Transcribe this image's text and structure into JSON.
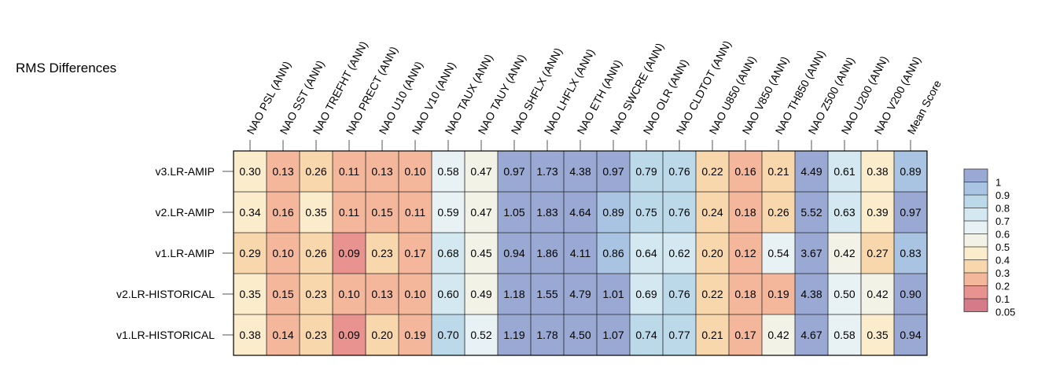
{
  "chart_data": {
    "type": "heatmap",
    "title": "RMS Differences",
    "columns": [
      "NAO PSL (ANN)",
      "NAO SST (ANN)",
      "NAO TREFHT (ANN)",
      "NAO PRECT (ANN)",
      "NAO U10 (ANN)",
      "NAO V10 (ANN)",
      "NAO TAUX (ANN)",
      "NAO TAUY (ANN)",
      "NAO SHFLX (ANN)",
      "NAO LHFLX (ANN)",
      "NAO ETH (ANN)",
      "NAO SWCRE (ANN)",
      "NAO OLR (ANN)",
      "NAO CLDTOT (ANN)",
      "NAO U850 (ANN)",
      "NAO V850 (ANN)",
      "NAO TH850 (ANN)",
      "NAO Z500 (ANN)",
      "NAO U200 (ANN)",
      "NAO V200 (ANN)",
      "Mean Score"
    ],
    "rows": [
      "v3.LR-AMIP",
      "v2.LR-AMIP",
      "v1.LR-AMIP",
      "v2.LR-HISTORICAL",
      "v1.LR-HISTORICAL"
    ],
    "values": [
      [
        "0.30",
        "0.13",
        "0.26",
        "0.11",
        "0.13",
        "0.10",
        "0.58",
        "0.47",
        "0.97",
        "1.73",
        "4.38",
        "0.97",
        "0.79",
        "0.76",
        "0.22",
        "0.16",
        "0.21",
        "4.49",
        "0.61",
        "0.38",
        "0.89"
      ],
      [
        "0.34",
        "0.16",
        "0.35",
        "0.11",
        "0.15",
        "0.11",
        "0.59",
        "0.47",
        "1.05",
        "1.83",
        "4.64",
        "0.89",
        "0.75",
        "0.76",
        "0.24",
        "0.18",
        "0.26",
        "5.52",
        "0.63",
        "0.39",
        "0.97"
      ],
      [
        "0.29",
        "0.10",
        "0.26",
        "0.09",
        "0.23",
        "0.17",
        "0.68",
        "0.45",
        "0.94",
        "1.86",
        "4.11",
        "0.86",
        "0.64",
        "0.62",
        "0.20",
        "0.12",
        "0.54",
        "3.67",
        "0.42",
        "0.27",
        "0.83"
      ],
      [
        "0.35",
        "0.15",
        "0.23",
        "0.10",
        "0.13",
        "0.10",
        "0.60",
        "0.49",
        "1.18",
        "1.55",
        "4.79",
        "1.01",
        "0.69",
        "0.76",
        "0.22",
        "0.18",
        "0.19",
        "4.38",
        "0.50",
        "0.42",
        "0.90"
      ],
      [
        "0.38",
        "0.14",
        "0.23",
        "0.09",
        "0.20",
        "0.19",
        "0.70",
        "0.52",
        "1.19",
        "1.78",
        "4.50",
        "1.07",
        "0.74",
        "0.77",
        "0.21",
        "0.17",
        "0.42",
        "4.67",
        "0.58",
        "0.35",
        "0.94"
      ]
    ],
    "colorbar": {
      "labels": [
        "1",
        "0.9",
        "0.8",
        "0.7",
        "0.6",
        "0.5",
        "0.4",
        "0.3",
        "0.2",
        "0.1",
        "0.05"
      ],
      "colors": [
        "#9aa9d3",
        "#a9c4e2",
        "#bcd9ea",
        "#d3e8f0",
        "#e8f2f4",
        "#f3f2e6",
        "#fbeccb",
        "#f9d7ad",
        "#f4b79c",
        "#e99390",
        "#d57a88"
      ]
    },
    "bin_edges": [
      0.05,
      0.1,
      0.2,
      0.3,
      0.4,
      0.5,
      0.6,
      0.7,
      0.8,
      0.9,
      1
    ],
    "bin_colors": [
      "#d57a88",
      "#e99390",
      "#f4b79c",
      "#f9d7ad",
      "#fbeccb",
      "#f3f2e6",
      "#e8f2f4",
      "#d3e8f0",
      "#bcd9ea",
      "#a9c4e2",
      "#9aa9d3",
      "#9aa9d3"
    ]
  }
}
